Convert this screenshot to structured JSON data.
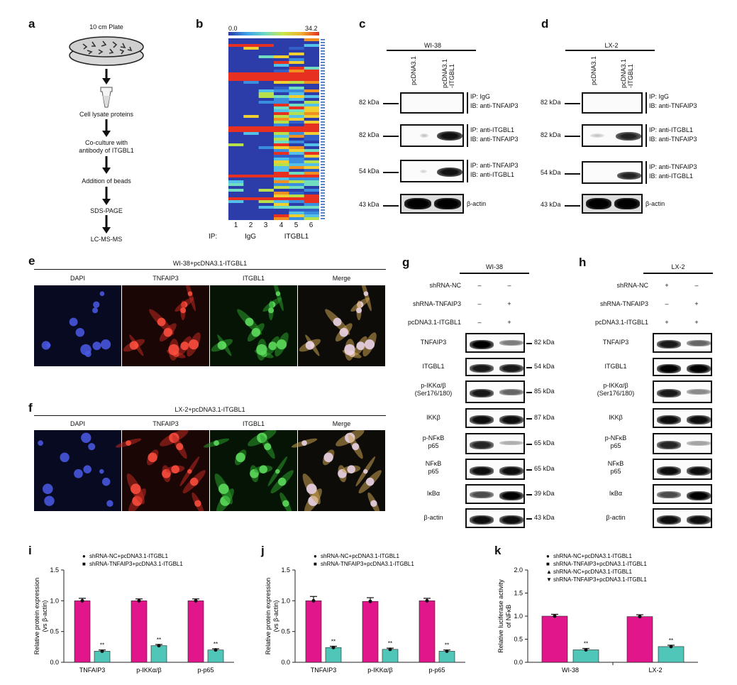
{
  "panels": {
    "a": "a",
    "b": "b",
    "c": "c",
    "d": "d",
    "e": "e",
    "f": "f",
    "g": "g",
    "h": "h",
    "i": "i",
    "j": "j",
    "k": "k"
  },
  "panel_a": {
    "plate_label": "10 cm Plate",
    "steps": [
      "Cell lysate proteins",
      "Co-culture with\nantibody of ITGBL1",
      "Addition of beads",
      "SDS-PAGE",
      "LC-MS-MS"
    ]
  },
  "panel_b": {
    "scale_min": "0.0",
    "scale_max": "34.2",
    "lanes": [
      "1",
      "2",
      "3",
      "4",
      "5",
      "6"
    ],
    "ip_label": "IP:",
    "group_igg": "IgG",
    "group_itgbl1": "ITGBL1"
  },
  "panel_c": {
    "cell_line": "WI-38",
    "lanes": [
      "pcDNA3.1",
      "pcDNA3.1\n-ITGBL1"
    ],
    "rows": [
      {
        "kda": "82 kDa",
        "label": "IP: IgG\nIB: anti-TNFAIP3"
      },
      {
        "kda": "82 kDa",
        "label": "IP: anti-ITGBL1\nIB: anti-TNFAIP3"
      },
      {
        "kda": "54 kDa",
        "label": "IP: anti-TNFAIP3\nIB: anti-ITGBL1"
      },
      {
        "kda": "43 kDa",
        "label": "β-actin"
      }
    ]
  },
  "panel_d": {
    "cell_line": "LX-2",
    "lanes": [
      "pcDNA3.1",
      "pcDNA3.1\n-ITGBL1"
    ],
    "rows": [
      {
        "kda": "82 kDa",
        "label": "IP: IgG\nIB: anti-TNFAIP3"
      },
      {
        "kda": "82 kDa",
        "label": "IP: anti-ITGBL1\nIB: anti-TNFAIP3"
      },
      {
        "kda": "54 kDa",
        "label": "IP: anti-TNFAIP3\nIB: anti-ITGBL1"
      },
      {
        "kda": "43 kDa",
        "label": "β-actin"
      }
    ]
  },
  "panel_e": {
    "title": "WI-38+pcDNA3.1-ITGBL1",
    "channels": [
      "DAPI",
      "TNFAIP3",
      "ITGBL1",
      "Merge"
    ]
  },
  "panel_f": {
    "title": "LX-2+pcDNA3.1-ITGBL1",
    "channels": [
      "DAPI",
      "TNFAIP3",
      "ITGBL1",
      "Merge"
    ]
  },
  "panel_g": {
    "cell_line": "WI-38",
    "conditions": [
      {
        "label": "shRNA-NC",
        "v1": "–",
        "v2": "–"
      },
      {
        "label": "shRNA-TNFAIP3",
        "v1": "–",
        "v2": "+"
      },
      {
        "label": "pcDNA3.1-ITGBL1",
        "v1": "–",
        "v2": "+"
      }
    ],
    "blots": [
      {
        "label": "TNFAIP3",
        "kda": "82 kDa"
      },
      {
        "label": "ITGBL1",
        "kda": "54 kDa"
      },
      {
        "label": "p-IKKα/β\n(Ser176/180)",
        "kda": "85 kDa"
      },
      {
        "label": "IKKβ",
        "kda": "87 kDa"
      },
      {
        "label": "p-NFκB\np65",
        "kda": "65 kDa"
      },
      {
        "label": "NFκB\np65",
        "kda": "65 kDa"
      },
      {
        "label": "IκBα",
        "kda": "39 kDa"
      },
      {
        "label": "β-actin",
        "kda": "43 kDa"
      }
    ]
  },
  "panel_h": {
    "cell_line": "LX-2",
    "conditions": [
      {
        "label": "shRNA-NC",
        "v1": "+",
        "v2": "–"
      },
      {
        "label": "shRNA-TNFAIP3",
        "v1": "–",
        "v2": "+"
      },
      {
        "label": "pcDNA3.1-ITGBL1",
        "v1": "+",
        "v2": "+"
      }
    ],
    "blots": [
      {
        "label": "TNFAIP3"
      },
      {
        "label": "ITGBL1"
      },
      {
        "label": "p-IKKα/β\n(Ser176/180)"
      },
      {
        "label": "IKKβ"
      },
      {
        "label": "p-NFκB\np65"
      },
      {
        "label": "NFκB\np65"
      },
      {
        "label": "IκBα"
      },
      {
        "label": "β-actin"
      }
    ]
  },
  "chart_data": [
    {
      "id": "i",
      "type": "bar",
      "ylabel": "Relative protein expression\n(vs β-actin)",
      "ylim": [
        0,
        1.5
      ],
      "yticks": [
        "0.0",
        "0.5",
        "1.0",
        "1.5"
      ],
      "categories": [
        "TNFAIP3",
        "p-IKKα/β",
        "p-p65"
      ],
      "series": [
        {
          "name": "shRNA-NC+pcDNA3.1-ITGBL1",
          "marker": "●",
          "color": "#e0168a",
          "values": [
            1.0,
            1.0,
            1.0
          ],
          "errors": [
            0.04,
            0.03,
            0.03
          ]
        },
        {
          "name": "shRNA-TNFAIP3+pcDNA3.1-ITGBL1",
          "marker": "■",
          "color": "#4fc6b8",
          "values": [
            0.18,
            0.27,
            0.2
          ],
          "errors": [
            0.02,
            0.02,
            0.02
          ]
        }
      ],
      "annotations": [
        "**",
        "**",
        "**"
      ]
    },
    {
      "id": "j",
      "type": "bar",
      "ylabel": "Relative protein expression\n(vs β-actin)",
      "ylim": [
        0,
        1.5
      ],
      "yticks": [
        "0.0",
        "0.5",
        "1.0",
        "1.5"
      ],
      "categories": [
        "TNFAIP3",
        "p-IKKα/β",
        "p-p65"
      ],
      "series": [
        {
          "name": "shRNA-NC+pcDNA3.1-ITGBL1",
          "marker": "●",
          "color": "#e0168a",
          "values": [
            1.0,
            0.99,
            1.0
          ],
          "errors": [
            0.07,
            0.06,
            0.04
          ]
        },
        {
          "name": "shRNA-TNFAIP3+pcDNA3.1-ITGBL1",
          "marker": "■",
          "color": "#4fc6b8",
          "values": [
            0.24,
            0.21,
            0.18
          ],
          "errors": [
            0.02,
            0.02,
            0.02
          ]
        }
      ],
      "annotations": [
        "**",
        "**",
        "**"
      ]
    },
    {
      "id": "k",
      "type": "bar",
      "ylabel": "Relative luciferase activity\nof NFκB",
      "ylim": [
        0,
        2.0
      ],
      "yticks": [
        "0.0",
        "0.5",
        "1.0",
        "1.5",
        "2.0"
      ],
      "categories": [
        "WI-38",
        "LX-2"
      ],
      "series": [
        {
          "name": "shRNA-NC+pcDNA3.1-ITGBL1",
          "marker": "●",
          "color": "#e0168a",
          "values": [
            1.0,
            null
          ],
          "errors": [
            0.04,
            0
          ]
        },
        {
          "name": "shRNA-TNFAIP3+pcDNA3.1-ITGBL1",
          "marker": "■",
          "color": "#4fc6b8",
          "values": [
            0.27,
            null
          ],
          "errors": [
            0.03,
            0
          ]
        },
        {
          "name": "shRNA-NC+pcDNA3.1-ITGBL1",
          "marker": "▲",
          "color": "#e0168a",
          "values": [
            null,
            0.99
          ],
          "errors": [
            0,
            0.04
          ]
        },
        {
          "name": "shRNA-TNFAIP3+pcDNA3.1-ITGBL1",
          "marker": "▼",
          "color": "#4fc6b8",
          "values": [
            null,
            0.34
          ],
          "errors": [
            0,
            0.03
          ]
        }
      ],
      "annotations": [
        "**",
        "**"
      ]
    }
  ],
  "colors": {
    "magenta": "#e0168a",
    "teal": "#4fc6b8"
  }
}
